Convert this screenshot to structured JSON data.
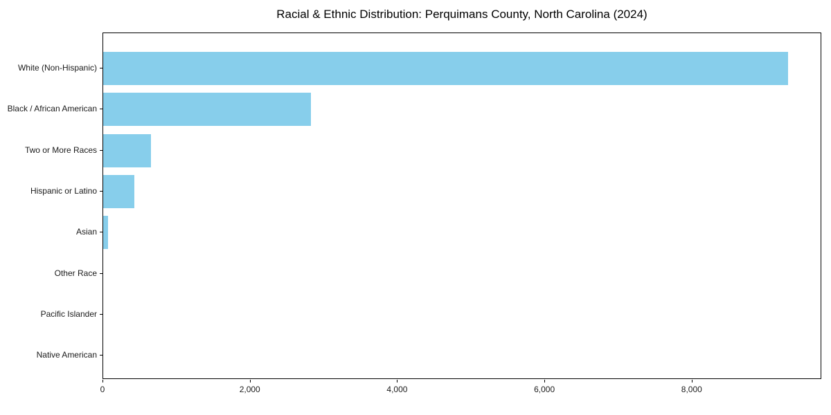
{
  "title": "Racial & Ethnic Distribution: Perquimans County, North Carolina (2024)",
  "chart_data": {
    "type": "bar",
    "orientation": "horizontal",
    "title": "Racial & Ethnic Distribution: Perquimans County, North Carolina (2024)",
    "categories": [
      "White (Non-Hispanic)",
      "Black / African American",
      "Two or More Races",
      "Hispanic or Latino",
      "Asian",
      "Other Race",
      "Pacific Islander",
      "Native American"
    ],
    "values": [
      9300,
      2820,
      645,
      425,
      65,
      0,
      0,
      0
    ],
    "xlabel": "",
    "ylabel": "",
    "xlim": [
      0,
      9760
    ],
    "x_ticks": [
      0,
      2000,
      4000,
      6000,
      8000
    ],
    "x_tick_labels": [
      "0",
      "2,000",
      "4,000",
      "6,000",
      "8,000"
    ],
    "bar_color": "#87CEEB",
    "spine_color": "#000000",
    "background_color": "#ffffff",
    "grid": false,
    "legend": "none"
  }
}
